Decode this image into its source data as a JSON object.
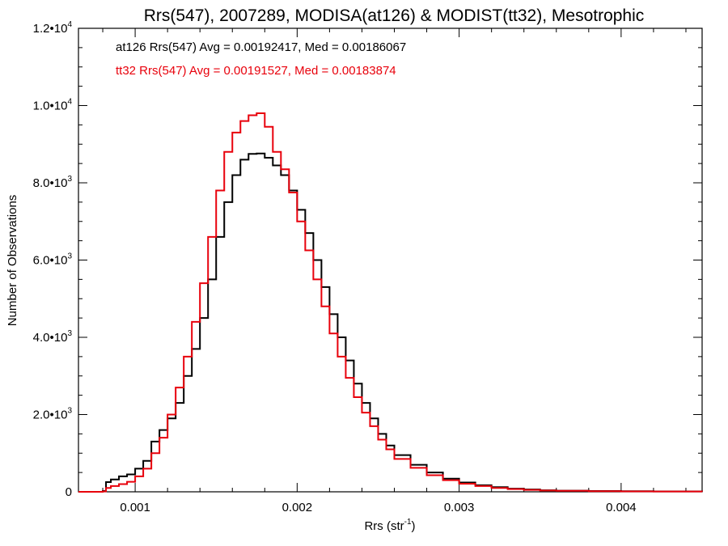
{
  "chart_data": {
    "type": "line",
    "title": "Rrs(547), 2007289, MODISA(at126) & MODIST(tt32), Mesotrophic",
    "xlabel": "Rrs (str",
    "xlabel_sup": "-1",
    "xlabel_end": ")",
    "ylabel": "Number of Observations",
    "xlim": [
      0.00065,
      0.0045
    ],
    "ylim": [
      0,
      12000
    ],
    "grid": false,
    "x_ticks": [
      {
        "value": 0.001,
        "label": "0.001"
      },
      {
        "value": 0.002,
        "label": "0.002"
      },
      {
        "value": 0.003,
        "label": "0.003"
      },
      {
        "value": 0.004,
        "label": "0.004"
      }
    ],
    "y_ticks": [
      {
        "value": 0,
        "label": "0",
        "exp": ""
      },
      {
        "value": 2000,
        "label": "2.0•10",
        "exp": "3"
      },
      {
        "value": 4000,
        "label": "4.0•10",
        "exp": "3"
      },
      {
        "value": 6000,
        "label": "6.0•10",
        "exp": "3"
      },
      {
        "value": 8000,
        "label": "8.0•10",
        "exp": "3"
      },
      {
        "value": 10000,
        "label": "1.0•10",
        "exp": "4"
      },
      {
        "value": 12000,
        "label": "1.2•10",
        "exp": "4"
      }
    ],
    "legend": {
      "placement": "top-left",
      "entries": [
        {
          "text": "at126 Rrs(547) Avg = 0.00192417, Med = 0.00186067",
          "color": "#000000"
        },
        {
          "text": "tt32 Rrs(547) Avg = 0.00191527, Med = 0.00183874",
          "color": "#e8000b"
        }
      ]
    },
    "series": [
      {
        "color": "#000000",
        "x": [
          0.00065,
          0.00075,
          0.0008,
          0.00082,
          0.00085,
          0.0009,
          0.00095,
          0.001,
          0.00105,
          0.0011,
          0.00115,
          0.0012,
          0.00125,
          0.0013,
          0.00135,
          0.0014,
          0.00145,
          0.0015,
          0.00155,
          0.0016,
          0.00165,
          0.0017,
          0.00175,
          0.0018,
          0.00185,
          0.0019,
          0.00195,
          0.002,
          0.00205,
          0.0021,
          0.00215,
          0.0022,
          0.00225,
          0.0023,
          0.00235,
          0.0024,
          0.00245,
          0.0025,
          0.00255,
          0.0026,
          0.0027,
          0.0028,
          0.0029,
          0.003,
          0.0031,
          0.0032,
          0.0033,
          0.0034,
          0.0035,
          0.0036,
          0.0038,
          0.004,
          0.0042,
          0.0045
        ],
        "y": [
          0,
          0,
          20,
          250,
          320,
          400,
          450,
          600,
          800,
          1300,
          1600,
          1900,
          2300,
          3000,
          3700,
          4500,
          5500,
          6600,
          7500,
          8200,
          8600,
          8750,
          8760,
          8650,
          8450,
          8200,
          7800,
          7300,
          6700,
          6000,
          5300,
          4600,
          4000,
          3400,
          2800,
          2300,
          1900,
          1500,
          1200,
          950,
          700,
          500,
          340,
          240,
          170,
          120,
          80,
          60,
          40,
          30,
          20,
          15,
          10,
          5
        ]
      },
      {
        "color": "#e8000b",
        "x": [
          0.00065,
          0.00075,
          0.0008,
          0.00082,
          0.00085,
          0.0009,
          0.00095,
          0.001,
          0.00105,
          0.0011,
          0.00115,
          0.0012,
          0.00125,
          0.0013,
          0.00135,
          0.0014,
          0.00145,
          0.0015,
          0.00155,
          0.0016,
          0.00165,
          0.0017,
          0.00175,
          0.0018,
          0.00185,
          0.0019,
          0.00195,
          0.002,
          0.00205,
          0.0021,
          0.00215,
          0.0022,
          0.00225,
          0.0023,
          0.00235,
          0.0024,
          0.00245,
          0.0025,
          0.00255,
          0.0026,
          0.0027,
          0.0028,
          0.0029,
          0.003,
          0.0031,
          0.0032,
          0.0033,
          0.0034,
          0.0035,
          0.0036,
          0.0038,
          0.004,
          0.0042,
          0.0045
        ],
        "y": [
          0,
          0,
          10,
          100,
          150,
          200,
          260,
          400,
          600,
          1000,
          1400,
          2000,
          2700,
          3500,
          4400,
          5400,
          6600,
          7800,
          8800,
          9300,
          9600,
          9750,
          9800,
          9450,
          8800,
          8350,
          7750,
          7000,
          6250,
          5500,
          4800,
          4100,
          3500,
          2950,
          2450,
          2050,
          1700,
          1350,
          1100,
          850,
          620,
          430,
          300,
          210,
          150,
          100,
          70,
          50,
          35,
          25,
          15,
          10,
          8,
          5
        ]
      }
    ]
  }
}
